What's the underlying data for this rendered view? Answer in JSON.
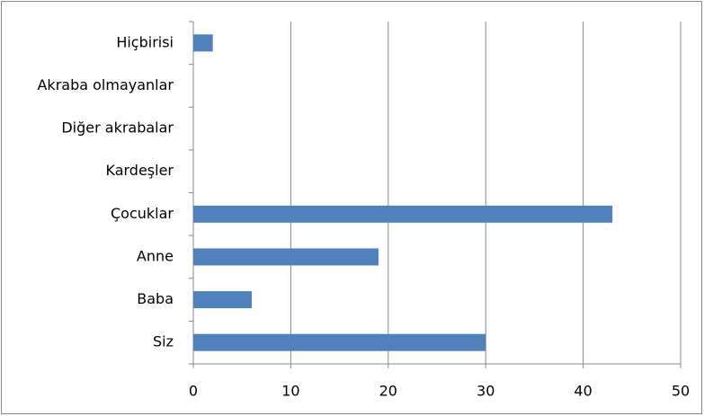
{
  "chart_data": {
    "type": "bar",
    "orientation": "horizontal",
    "categories": [
      "Hiçbirisi",
      "Akraba olmayanlar",
      "Diğer akrabalar",
      "Kardeşler",
      "Çocuklar",
      "Anne",
      "Baba",
      "Siz"
    ],
    "values": [
      2,
      0,
      0,
      0,
      43,
      19,
      6,
      30
    ],
    "color": "#4f81bd",
    "xlim": [
      0,
      50
    ],
    "xticks": [
      0,
      10,
      20,
      30,
      40,
      50
    ],
    "grid": true
  }
}
